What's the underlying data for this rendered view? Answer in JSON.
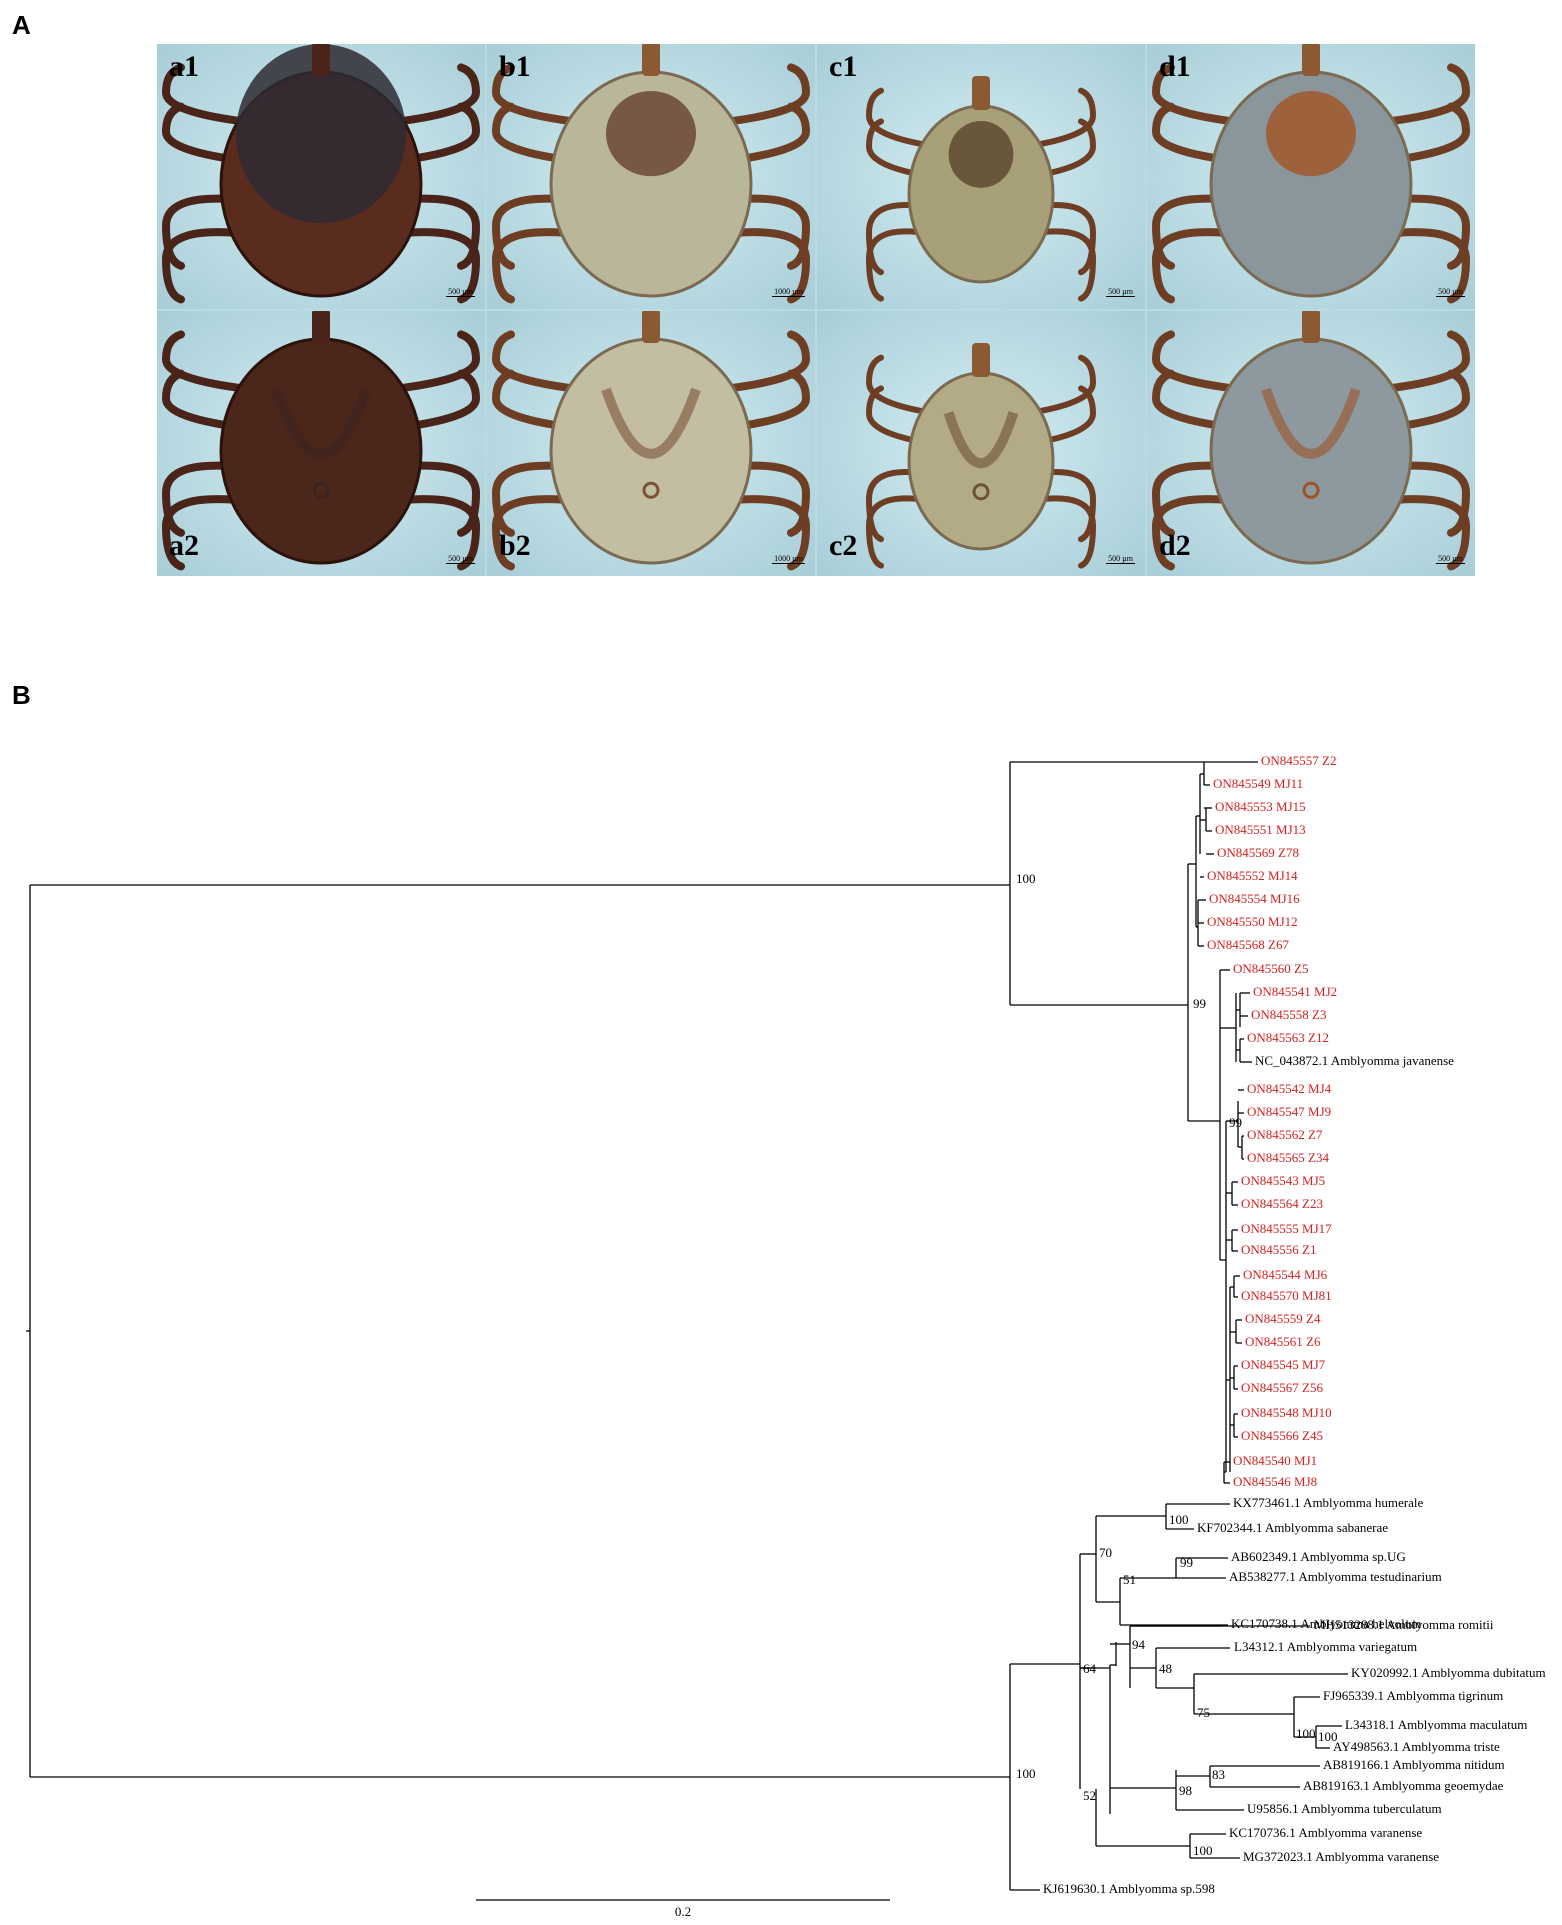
{
  "panel_a_letter": "A",
  "panel_b_letter": "B",
  "photos": [
    {
      "label": "a1",
      "scale": "500 µm",
      "body": "#5a2c1e",
      "shield": "#2e2a33",
      "kind": "dorsal-dark"
    },
    {
      "label": "b1",
      "scale": "1000 µm",
      "body": "#b9b69a",
      "shield": "#6b4836",
      "kind": "dorsal-pale"
    },
    {
      "label": "c1",
      "scale": "500 µm",
      "body": "#a8a078",
      "shield": "#5d4a30",
      "kind": "dorsal-small"
    },
    {
      "label": "d1",
      "scale": "500 µm",
      "body": "#8a969c",
      "shield": "#a0592a",
      "kind": "dorsal-grey"
    },
    {
      "label": "a2",
      "scale": "500 µm",
      "body": "#4a261b",
      "shield": "#3a2320",
      "kind": "ventral-dark"
    },
    {
      "label": "b2",
      "scale": "1000 µm",
      "body": "#c3bea2",
      "shield": "#7a5236",
      "kind": "ventral-pale"
    },
    {
      "label": "c2",
      "scale": "500 µm",
      "body": "#b3ab86",
      "shield": "#6b5234",
      "kind": "ventral-small"
    },
    {
      "label": "d2",
      "scale": "500 µm",
      "body": "#8e999f",
      "shield": "#9b5428",
      "kind": "ventral-grey"
    }
  ],
  "colors": {
    "highlight": "#d42020",
    "normal": "#000000"
  },
  "tree": {
    "red_taxa": [
      "ON845557 Z2",
      "ON845549 MJ11",
      "ON845553 MJ15",
      "ON845551 MJ13",
      "ON845569 Z78",
      "ON845552 MJ14",
      "ON845554 MJ16",
      "ON845550 MJ12",
      "ON845568 Z67",
      "ON845560 Z5",
      "ON845541 MJ2",
      "ON845558 Z3",
      "ON845563 Z12",
      "ON845542 MJ4",
      "ON845547 MJ9",
      "ON845562 Z7",
      "ON845565 Z34",
      "ON845543 MJ5",
      "ON845564 Z23",
      "ON845555 MJ17",
      "ON845556 Z1",
      "ON845544 MJ6",
      "ON845570 MJ81",
      "ON845559 Z4",
      "ON845561 Z6",
      "ON845545 MJ7",
      "ON845567 Z56",
      "ON845548 MJ10",
      "ON845566 Z45",
      "ON845540 MJ1",
      "ON845546 MJ8"
    ],
    "black_taxa": [
      "NC_043872.1 Amblyomma javanense",
      "KX773461.1 Amblyomma humerale",
      "KF702344.1 Amblyomma sabanerae",
      "AB602349.1 Amblyomma sp.UG",
      "AB538277.1 Amblyomma testudinarium",
      "KC170738.1 Amblyomma helvolum",
      "MH513288.1 Amblyomma romitii",
      "L34312.1 Amblyomma variegatum",
      "KY020992.1 Amblyomma dubitatum",
      "FJ965339.1 Amblyomma tigrinum",
      "L34318.1 Amblyomma maculatum",
      "AY498563.1 Amblyomma triste",
      "AB819166.1 Amblyomma nitidum",
      "AB819163.1 Amblyomma geoemydae",
      "U95856.1 Amblyomma tuberculatum",
      "KC170736.1 Amblyomma varanense",
      "MG372023.1 Amblyomma varanense",
      "KJ619630.1 Amblyomma sp.598"
    ],
    "bootstrap": [
      "100",
      "99",
      "99",
      "100",
      "100",
      "70",
      "99",
      "51",
      "94",
      "48",
      "75",
      "100",
      "100",
      "64",
      "83",
      "98",
      "52",
      "100"
    ],
    "scale_label": "0.2"
  }
}
